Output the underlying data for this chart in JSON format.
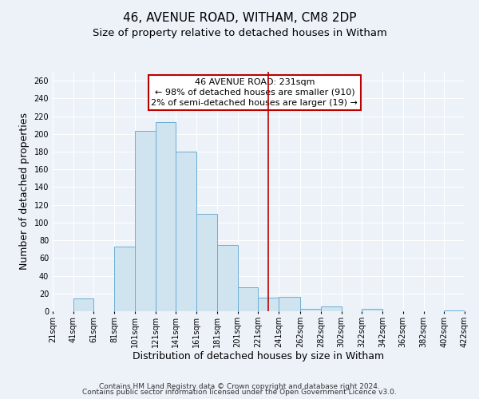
{
  "title": "46, AVENUE ROAD, WITHAM, CM8 2DP",
  "subtitle": "Size of property relative to detached houses in Witham",
  "xlabel": "Distribution of detached houses by size in Witham",
  "ylabel": "Number of detached properties",
  "bar_color": "#d0e4f0",
  "bar_edge_color": "#6baed6",
  "background_color": "#edf2f9",
  "grid_color": "#ffffff",
  "bin_edges": [
    21,
    41,
    61,
    81,
    101,
    121,
    141,
    161,
    181,
    201,
    221,
    241,
    262,
    282,
    302,
    322,
    342,
    362,
    382,
    402,
    422
  ],
  "bar_heights": [
    0,
    14,
    0,
    73,
    203,
    213,
    180,
    110,
    75,
    27,
    15,
    16,
    3,
    5,
    0,
    3,
    0,
    0,
    0,
    1
  ],
  "vline_x": 231,
  "vline_color": "#bb0000",
  "annotation_line1": "46 AVENUE ROAD: 231sqm",
  "annotation_line2": "← 98% of detached houses are smaller (910)",
  "annotation_line3": "2% of semi-detached houses are larger (19) →",
  "annotation_box_color": "#bb0000",
  "yticks": [
    0,
    20,
    40,
    60,
    80,
    100,
    120,
    140,
    160,
    180,
    200,
    220,
    240,
    260
  ],
  "ylim": [
    0,
    270
  ],
  "tick_labels": [
    "21sqm",
    "41sqm",
    "61sqm",
    "81sqm",
    "101sqm",
    "121sqm",
    "141sqm",
    "161sqm",
    "181sqm",
    "201sqm",
    "221sqm",
    "241sqm",
    "262sqm",
    "282sqm",
    "302sqm",
    "322sqm",
    "342sqm",
    "362sqm",
    "382sqm",
    "402sqm",
    "422sqm"
  ],
  "footer_line1": "Contains HM Land Registry data © Crown copyright and database right 2024.",
  "footer_line2": "Contains public sector information licensed under the Open Government Licence v3.0.",
  "title_fontsize": 11,
  "subtitle_fontsize": 9.5,
  "axis_label_fontsize": 9,
  "tick_fontsize": 7,
  "footer_fontsize": 6.5,
  "annotation_fontsize": 8
}
